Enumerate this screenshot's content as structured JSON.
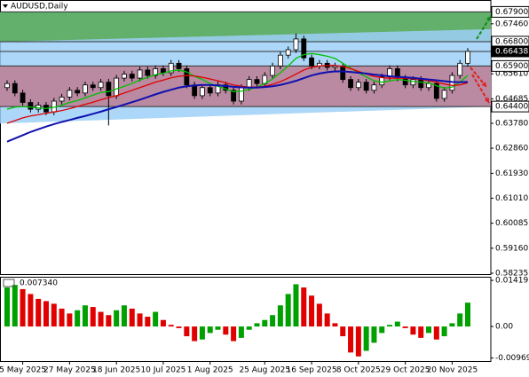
{
  "chart_data": [
    {
      "type": "candlestick",
      "title": "AUDUSD,Daily",
      "categories": [
        null,
        null,
        "5 May 2025",
        null,
        null,
        null,
        null,
        null,
        "27 May 2025",
        null,
        null,
        null,
        null,
        null,
        "18 Jun 2025",
        null,
        null,
        null,
        null,
        null,
        "10 Jul 2025",
        null,
        null,
        null,
        null,
        null,
        "1 Aug 2025",
        null,
        null,
        null,
        null,
        null,
        null,
        "25 Aug 2025",
        null,
        null,
        null,
        null,
        null,
        "16 Sep 2025",
        null,
        null,
        null,
        null,
        null,
        "8 Oct 2025",
        null,
        null,
        null,
        null,
        null,
        "29 Oct 2025",
        null,
        null,
        null,
        null,
        null,
        "20 Nov 2025",
        null,
        null
      ],
      "open": [
        0.651,
        0.6525,
        0.649,
        0.6455,
        0.643,
        0.6445,
        0.642,
        0.646,
        0.6475,
        0.65,
        0.649,
        0.652,
        0.651,
        0.653,
        0.648,
        0.6545,
        0.656,
        0.6545,
        0.6575,
        0.6555,
        0.658,
        0.6565,
        0.66,
        0.658,
        0.652,
        0.648,
        0.651,
        0.649,
        0.652,
        0.65,
        0.646,
        0.651,
        0.654,
        0.6525,
        0.6555,
        0.659,
        0.663,
        0.665,
        0.669,
        0.662,
        0.659,
        0.66,
        0.6585,
        0.659,
        0.654,
        0.651,
        0.653,
        0.65,
        0.652,
        0.655,
        0.658,
        0.6545,
        0.652,
        0.654,
        0.651,
        0.6525,
        0.647,
        0.65,
        0.6555,
        0.66
      ],
      "high": [
        0.6537,
        0.6537,
        0.6502,
        0.6467,
        0.6457,
        0.6457,
        0.6472,
        0.6487,
        0.6512,
        0.6512,
        0.6532,
        0.6532,
        0.6542,
        0.6542,
        0.6557,
        0.6572,
        0.6572,
        0.6587,
        0.6587,
        0.6592,
        0.6592,
        0.6612,
        0.6612,
        0.6592,
        0.6532,
        0.6522,
        0.6522,
        0.6532,
        0.6532,
        0.6512,
        0.6522,
        0.6552,
        0.6552,
        0.6567,
        0.6602,
        0.6642,
        0.6662,
        0.671,
        0.6702,
        0.6632,
        0.6612,
        0.6612,
        0.6602,
        0.6602,
        0.6552,
        0.6542,
        0.6542,
        0.6532,
        0.6562,
        0.6592,
        0.6592,
        0.6557,
        0.6552,
        0.6552,
        0.6537,
        0.6537,
        0.6512,
        0.6567,
        0.6612,
        0.6656
      ],
      "low": [
        0.6498,
        0.6478,
        0.6443,
        0.6418,
        0.6418,
        0.6408,
        0.6408,
        0.6448,
        0.6463,
        0.6478,
        0.6478,
        0.6498,
        0.6498,
        0.637,
        0.6468,
        0.6533,
        0.6533,
        0.6533,
        0.6543,
        0.6543,
        0.6553,
        0.6553,
        0.6568,
        0.6508,
        0.6468,
        0.6468,
        0.6478,
        0.6478,
        0.6488,
        0.6448,
        0.6448,
        0.6498,
        0.6513,
        0.6513,
        0.6543,
        0.6578,
        0.6618,
        0.6638,
        0.6608,
        0.6578,
        0.6578,
        0.6573,
        0.6573,
        0.6528,
        0.6498,
        0.6498,
        0.6488,
        0.6488,
        0.6508,
        0.6538,
        0.6533,
        0.6508,
        0.6508,
        0.6498,
        0.6498,
        0.6458,
        0.6458,
        0.6488,
        0.6543,
        0.6588
      ],
      "close": [
        0.6525,
        0.649,
        0.6455,
        0.643,
        0.6445,
        0.642,
        0.646,
        0.6475,
        0.65,
        0.649,
        0.652,
        0.651,
        0.653,
        0.648,
        0.6545,
        0.656,
        0.6545,
        0.6575,
        0.6555,
        0.658,
        0.6565,
        0.66,
        0.658,
        0.652,
        0.648,
        0.651,
        0.649,
        0.652,
        0.65,
        0.646,
        0.651,
        0.654,
        0.6525,
        0.6555,
        0.659,
        0.663,
        0.665,
        0.669,
        0.662,
        0.659,
        0.66,
        0.6585,
        0.659,
        0.654,
        0.651,
        0.653,
        0.65,
        0.652,
        0.655,
        0.658,
        0.6545,
        0.652,
        0.654,
        0.651,
        0.6525,
        0.647,
        0.65,
        0.6555,
        0.66,
        0.6644
      ],
      "up_color": "#ffffff",
      "down_color": "#000000",
      "series": [
        {
          "color": "#00c000",
          "values": [
            0.643,
            0.6438,
            0.644,
            0.6438,
            0.6435,
            0.6433,
            0.6437,
            0.6445,
            0.6455,
            0.6462,
            0.6472,
            0.6482,
            0.6492,
            0.6495,
            0.6505,
            0.6515,
            0.6525,
            0.6538,
            0.6548,
            0.6558,
            0.6563,
            0.6572,
            0.6575,
            0.6568,
            0.6552,
            0.654,
            0.6525,
            0.6515,
            0.6505,
            0.6495,
            0.6497,
            0.6503,
            0.6512,
            0.6525,
            0.6542,
            0.6565,
            0.659,
            0.6618,
            0.6632,
            0.6636,
            0.6632,
            0.6626,
            0.6618,
            0.66,
            0.6582,
            0.6565,
            0.655,
            0.6535,
            0.653,
            0.6535,
            0.654,
            0.6537,
            0.6533,
            0.653,
            0.6527,
            0.6517,
            0.6508,
            0.6512,
            0.653,
            0.6555
          ]
        },
        {
          "color": "#e00000",
          "values": [
            0.6378,
            0.6388,
            0.6398,
            0.6405,
            0.641,
            0.6415,
            0.642,
            0.6425,
            0.6432,
            0.644,
            0.6448,
            0.6456,
            0.6465,
            0.6473,
            0.648,
            0.649,
            0.65,
            0.651,
            0.652,
            0.653,
            0.6538,
            0.6546,
            0.6552,
            0.6555,
            0.6553,
            0.6548,
            0.6542,
            0.6535,
            0.6528,
            0.652,
            0.6515,
            0.6512,
            0.6512,
            0.6515,
            0.6522,
            0.6532,
            0.6545,
            0.656,
            0.6575,
            0.6585,
            0.659,
            0.6592,
            0.6592,
            0.6588,
            0.658,
            0.657,
            0.656,
            0.6552,
            0.6547,
            0.6545,
            0.6545,
            0.6545,
            0.6543,
            0.654,
            0.6536,
            0.653,
            0.6523,
            0.6518,
            0.652,
            0.6528
          ]
        },
        {
          "color": "#1010b0",
          "values": [
            0.631,
            0.6322,
            0.6334,
            0.6346,
            0.6356,
            0.6366,
            0.6375,
            0.6383,
            0.639,
            0.6398,
            0.6405,
            0.6413,
            0.6421,
            0.643,
            0.6438,
            0.6447,
            0.6456,
            0.6465,
            0.6475,
            0.6485,
            0.6494,
            0.6502,
            0.651,
            0.6515,
            0.6518,
            0.652,
            0.652,
            0.6518,
            0.6516,
            0.6513,
            0.6511,
            0.651,
            0.651,
            0.6512,
            0.6515,
            0.652,
            0.6527,
            0.6535,
            0.6545,
            0.6555,
            0.6562,
            0.6567,
            0.657,
            0.657,
            0.6568,
            0.6565,
            0.6562,
            0.6558,
            0.6555,
            0.6552,
            0.655,
            0.6548,
            0.6546,
            0.6543,
            0.654,
            0.6537,
            0.6534,
            0.6531,
            0.653,
            0.6531
          ]
        }
      ],
      "zones": [
        {
          "range": [
            0.668,
            0.679
          ],
          "color": "#62b06c"
        },
        {
          "range": [
            0.644,
            0.659
          ],
          "color": "#b98aa1"
        }
      ],
      "channel": {
        "upper": [
          0.668,
          0.6726
        ],
        "lower": [
          0.6377,
          0.644
        ],
        "color": "#9dd0f7"
      },
      "ylim": [
        0.5817,
        0.6834
      ],
      "yticks": [
        {
          "value": 0.6746,
          "label": "0.67460"
        },
        {
          "value": 0.6561,
          "label": "0.65610"
        },
        0.64685,
        {
          "value": 0.6378,
          "label": "0.63780"
        },
        {
          "value": 0.6286,
          "label": "0.62860"
        },
        {
          "value": 0.6193,
          "label": "0.61930"
        },
        {
          "value": 0.6101,
          "label": "0.61010"
        },
        0.60085,
        {
          "value": 0.5916,
          "label": "0.59160"
        },
        0.58235
      ],
      "levels": [
        {
          "value": 0.679,
          "label": "0.67900"
        },
        {
          "value": 0.668,
          "label": "0.66800"
        },
        0.66438,
        {
          "value": 0.659,
          "label": "0.65900"
        },
        {
          "value": 0.644,
          "label": "0.64400"
        }
      ]
    },
    {
      "type": "histogram_oscillator",
      "values": [
        0.012,
        0.0128,
        0.0115,
        0.01,
        0.0085,
        0.0078,
        0.007,
        0.0055,
        0.004,
        0.005,
        0.0065,
        0.006,
        0.0045,
        0.0035,
        0.005,
        0.0065,
        0.0055,
        0.004,
        0.003,
        0.0045,
        0.002,
        0.0005,
        -0.0005,
        -0.003,
        -0.0045,
        -0.004,
        -0.002,
        -0.001,
        -0.0025,
        -0.0045,
        -0.0035,
        -0.001,
        0.001,
        0.002,
        0.0035,
        0.0065,
        0.01,
        0.013,
        0.012,
        0.0095,
        0.007,
        0.004,
        0.001,
        -0.003,
        -0.008,
        -0.0092,
        -0.0075,
        -0.005,
        -0.002,
        0.0005,
        0.0015,
        -0.0005,
        -0.0025,
        -0.0035,
        -0.002,
        -0.004,
        -0.003,
        0.001,
        0.004,
        0.00734
      ],
      "value_labels": [
        null,
        null,
        null,
        null,
        null,
        null,
        null,
        null,
        null,
        null,
        null,
        null,
        null,
        null,
        null,
        null,
        null,
        null,
        null,
        null,
        null,
        null,
        null,
        null,
        null,
        null,
        null,
        null,
        null,
        null,
        null,
        null,
        null,
        null,
        null,
        null,
        null,
        null,
        null,
        null,
        null,
        null,
        null,
        null,
        null,
        null,
        null,
        null,
        null,
        null,
        null,
        null,
        null,
        null,
        null,
        null,
        null,
        null,
        null,
        "0.007340"
      ],
      "up_color": "#00a000",
      "down_color": "#e00000",
      "ylim": [
        -0.0109,
        0.0153
      ],
      "yticks": [
        0.01419,
        {
          "value": 0,
          "label": "0.00"
        },
        -0.00969
      ]
    }
  ]
}
